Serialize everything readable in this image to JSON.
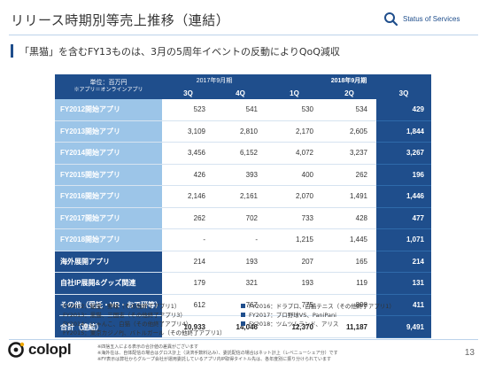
{
  "header": {
    "title": "リリース時期別等売上推移（連結）",
    "status_label": "Status of Services"
  },
  "subtitle": "「黒猫」を含むFY13ものは、3月の5周年イベントの反動によりQoQ減収",
  "table": {
    "unit_label": "単位：百万円",
    "unit_note": "※アプリ＝オンラインアプリ",
    "group_2017": "2017年9月期",
    "group_2018": "2018年9月期",
    "quarters": [
      "3Q",
      "4Q",
      "1Q",
      "2Q",
      "3Q"
    ],
    "rows": [
      {
        "label": "FY2012開始アプリ",
        "values": [
          "523",
          "541",
          "530",
          "534",
          "429"
        ]
      },
      {
        "label": "FY2013開始アプリ",
        "values": [
          "3,109",
          "2,810",
          "2,170",
          "2,605",
          "1,844"
        ]
      },
      {
        "label": "FY2014開始アプリ",
        "values": [
          "3,456",
          "6,152",
          "4,072",
          "3,237",
          "3,267"
        ]
      },
      {
        "label": "FY2015開始アプリ",
        "values": [
          "426",
          "393",
          "400",
          "262",
          "196"
        ]
      },
      {
        "label": "FY2016開始アプリ",
        "values": [
          "2,146",
          "2,161",
          "2,070",
          "1,491",
          "1,446"
        ]
      },
      {
        "label": "FY2017開始アプリ",
        "values": [
          "262",
          "702",
          "733",
          "428",
          "477"
        ]
      },
      {
        "label": "FY2018開始アプリ",
        "values": [
          "-",
          "-",
          "1,215",
          "1,445",
          "1,071"
        ]
      },
      {
        "label": "海外展開アプリ",
        "values": [
          "214",
          "193",
          "207",
          "165",
          "214"
        ]
      },
      {
        "label": "自社IP展開&グッズ関連",
        "values": [
          "179",
          "321",
          "193",
          "119",
          "131"
        ]
      },
      {
        "label": "その他（受託・VR・おで研等）",
        "values": [
          "612",
          "767",
          "775",
          "898",
          "411"
        ]
      }
    ],
    "total": {
      "label": "合計（連結）",
      "values": [
        "10,933",
        "14,046",
        "12,370",
        "11,187",
        "9,491"
      ]
    }
  },
  "legend": [
    [
      "FY2012：秘宝、野球（その他終了アプリ1）",
      "FY2016：ドラプロ、白猫テニス（その他終了アプリ1）"
    ],
    [
      "FY2013：黒猫、三国志（その他終了アプリ3）",
      "FY2017：プロ野球VS、PaniPani"
    ],
    [
      "FY2014：にゃんこ、白猫（その他終了アプリ4）",
      "FY2018：ツムツムランド、アリス"
    ],
    [
      "FY2015：東京カジノPJ、バトルガール（その他終了アプリ1）",
      ""
    ]
  ],
  "footer": {
    "logo_text": "colopl",
    "notes": [
      "※四捨五入による表示の合計値の差異がございます",
      "※海外在は、自体配信の場合はグロス計上（決済手数料込み）、委託配信の場合はネット計上（レベニューシェア分）です",
      "※FY表示は弊社からグループ会社が運用委託しているアプリ内IP取得タイトル先は、各年度別に振り分けられています"
    ],
    "page_number": "13"
  },
  "colors": {
    "accent": "#1f4e8c",
    "light": "#9cc5e8"
  }
}
